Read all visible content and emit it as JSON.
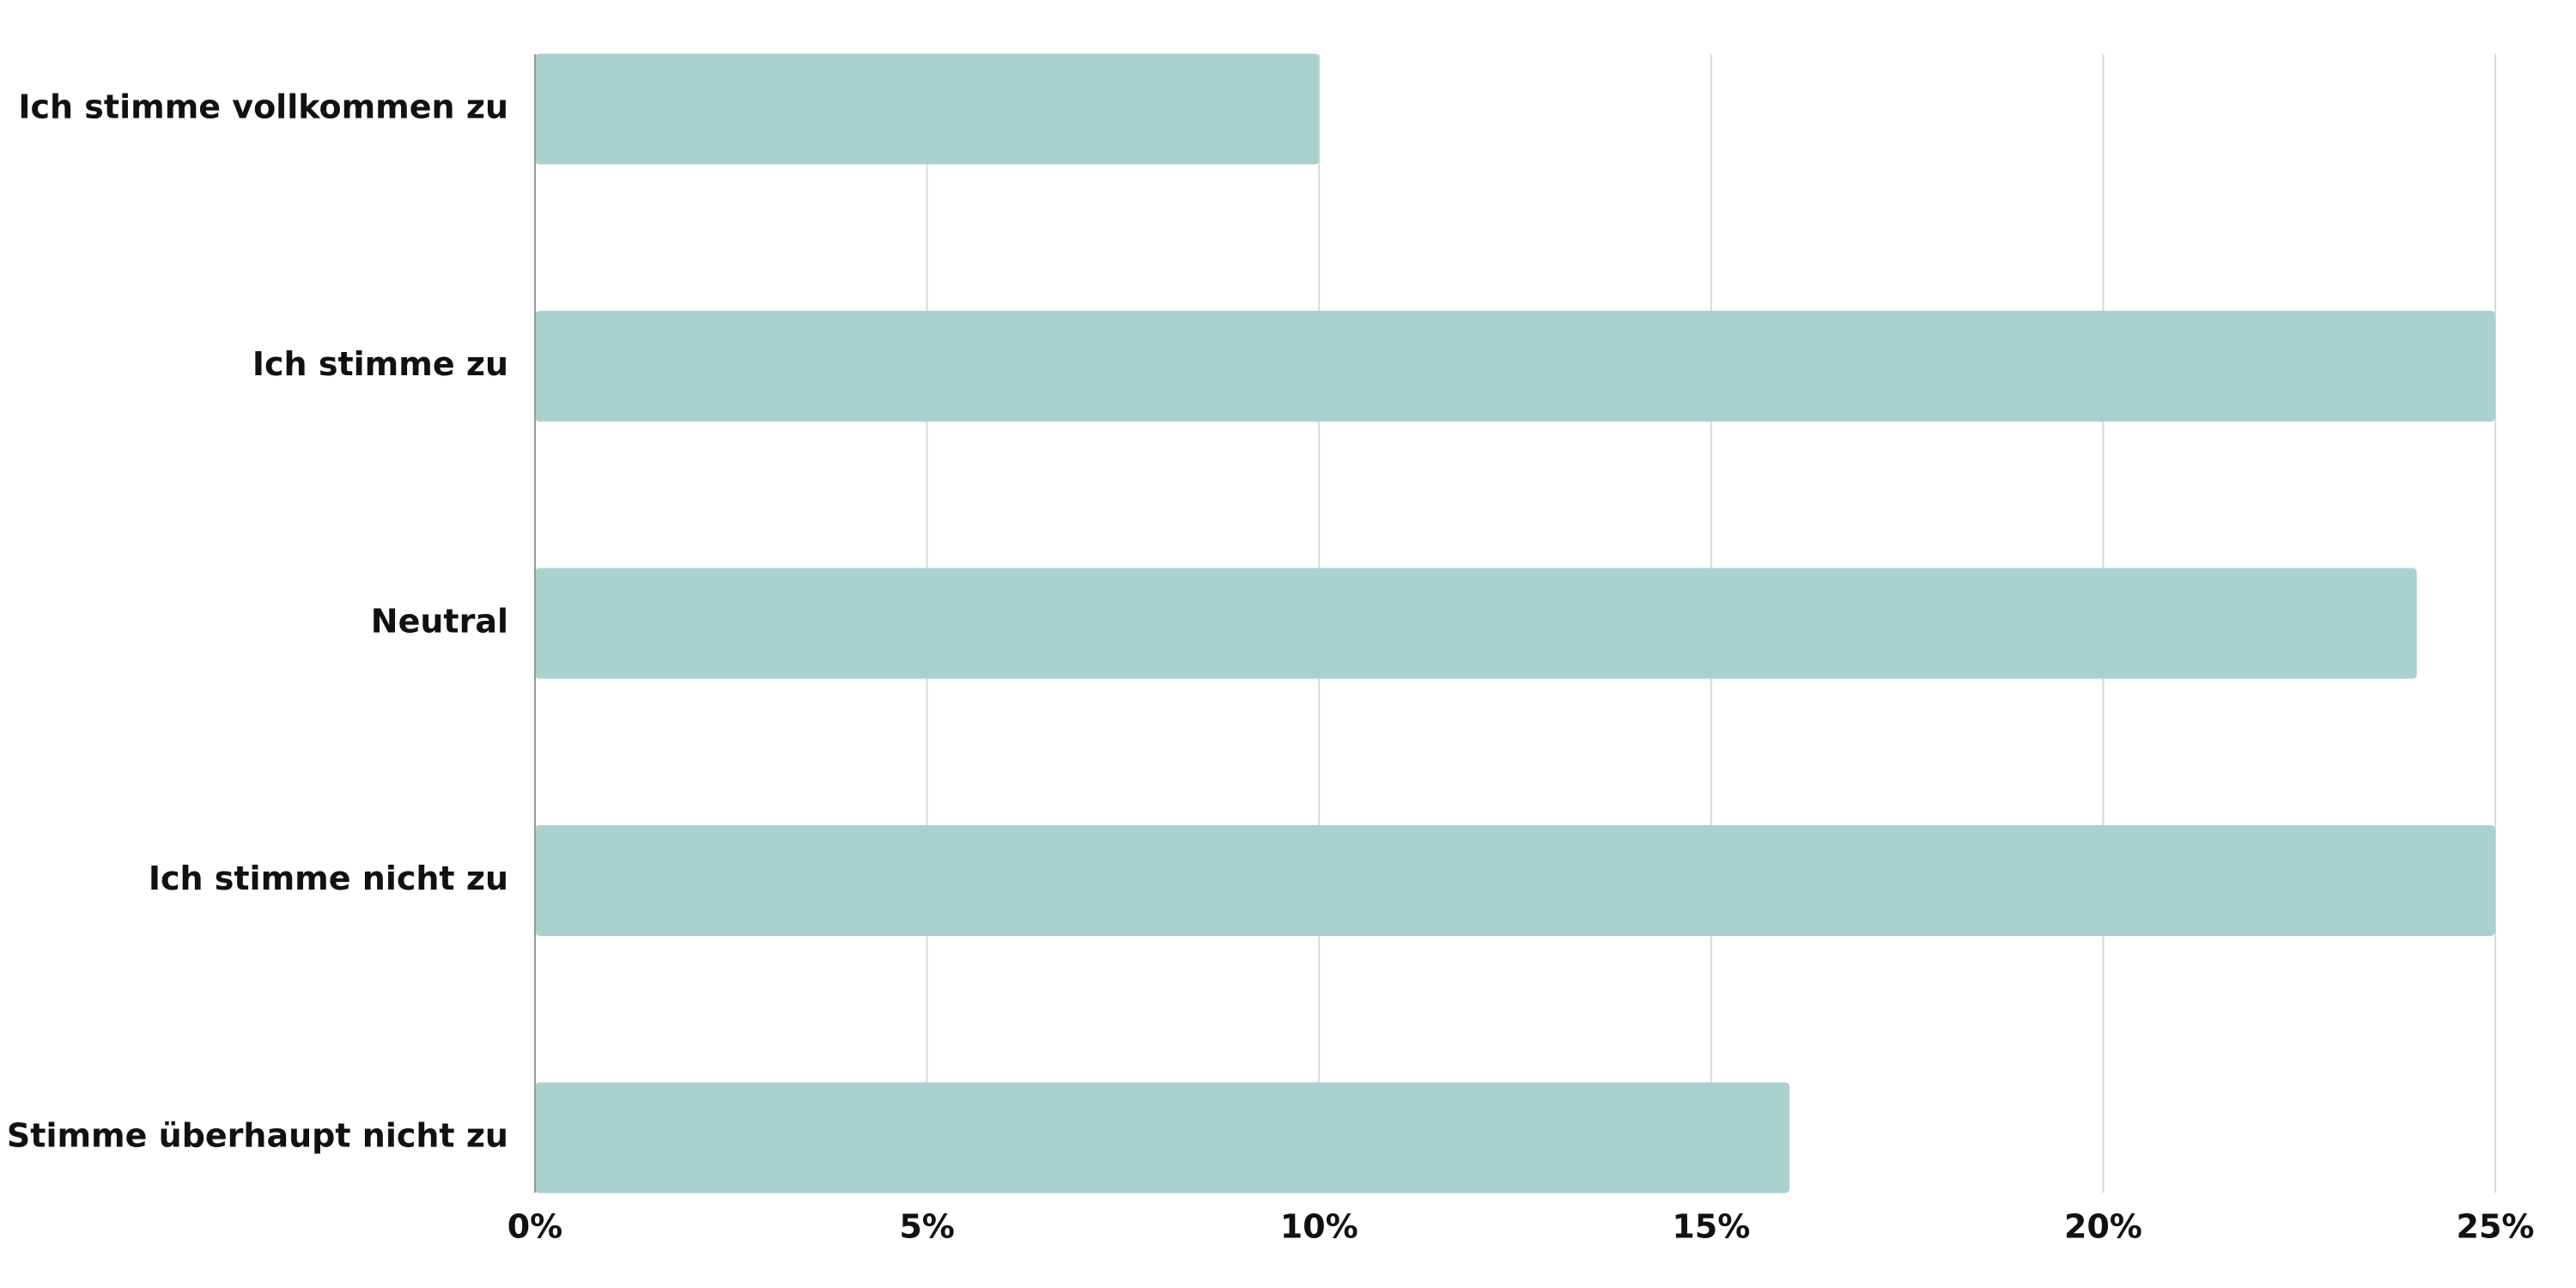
{
  "chart_data": {
    "type": "bar",
    "orientation": "horizontal",
    "categories": [
      "Ich stimme vollkommen zu",
      "Ich stimme zu",
      "Neutral",
      "Ich stimme nicht zu",
      "Stimme überhaupt nicht zu"
    ],
    "values": [
      10,
      25,
      24,
      25,
      16
    ],
    "color": "#abd1ce",
    "xlim": [
      0,
      25
    ],
    "xticks": [
      {
        "value": 0,
        "label": "0%"
      },
      {
        "value": 5,
        "label": "5%"
      },
      {
        "value": 10,
        "label": "10%"
      },
      {
        "value": 15,
        "label": "15%"
      },
      {
        "value": 20,
        "label": "20%"
      },
      {
        "value": 25,
        "label": "25%"
      }
    ],
    "grid": true
  }
}
